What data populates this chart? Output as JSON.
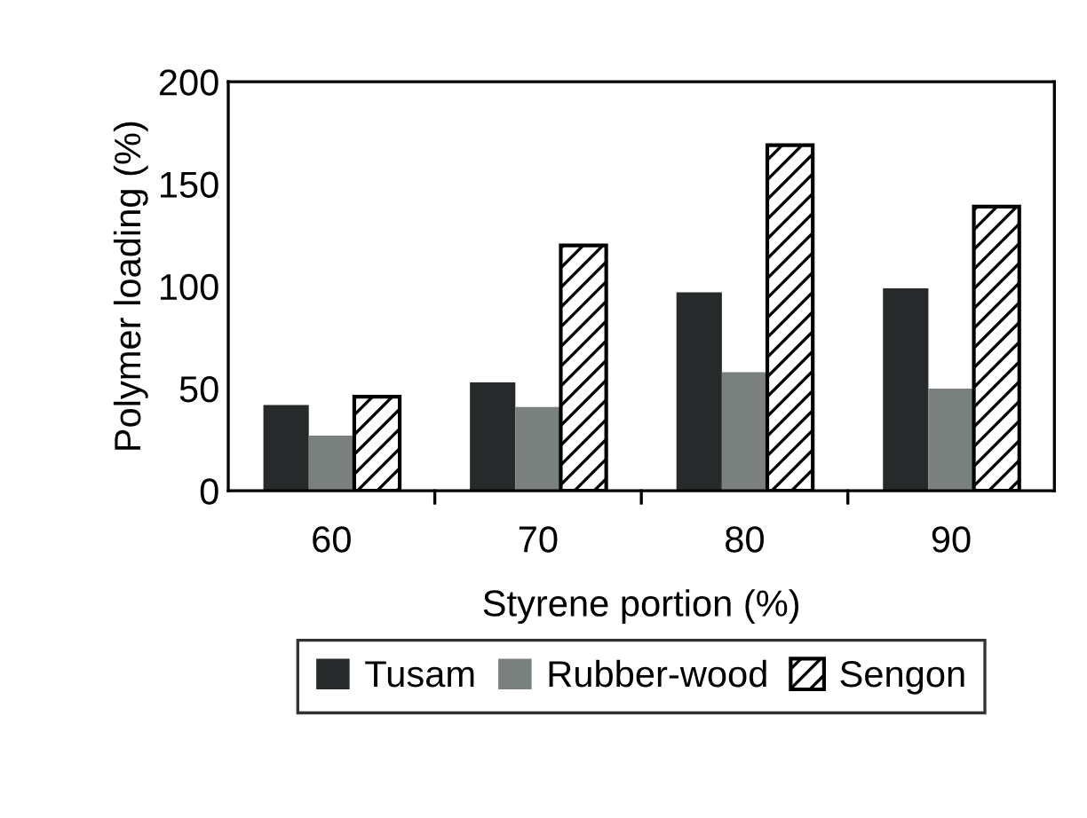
{
  "chart_data": {
    "type": "bar",
    "xlabel": "Styrene portion (%)",
    "ylabel": "Polymer loading (%)",
    "categories": [
      "60",
      "70",
      "80",
      "90"
    ],
    "series": [
      {
        "name": "Tusam",
        "color": "#262a2a",
        "values": [
          42,
          53,
          97,
          99
        ]
      },
      {
        "name": "Rubber-wood",
        "color": "#7a807e",
        "values": [
          27,
          41,
          58,
          50
        ]
      },
      {
        "name": "Sengon",
        "color": "#000000",
        "values": [
          46,
          120,
          169,
          139
        ]
      }
    ],
    "ylim": [
      0,
      200
    ],
    "yticks": [
      0,
      50,
      100,
      150,
      200
    ],
    "grid": false,
    "legend": "bottom"
  }
}
